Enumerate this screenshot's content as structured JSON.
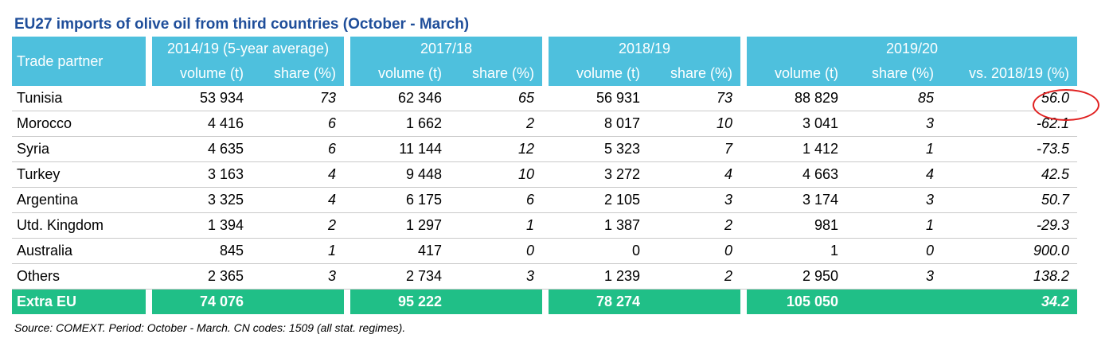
{
  "title": "EU27 imports of olive oil from third countries (October - March)",
  "header": {
    "partner_label": "Trade partner",
    "groups": [
      "2014/19 (5-year average)",
      "2017/18",
      "2018/19",
      "2019/20"
    ],
    "volume_label": "volume (t)",
    "share_label": "share (%)",
    "change_label": "vs. 2018/19 (%)"
  },
  "rows": [
    {
      "partner": "Tunisia",
      "v1": "53 934",
      "s1": "73",
      "v2": "62 346",
      "s2": "65",
      "v3": "56 931",
      "s3": "73",
      "v4": "88 829",
      "s4": "85",
      "chg": "56.0"
    },
    {
      "partner": "Morocco",
      "v1": "4 416",
      "s1": "6",
      "v2": "1 662",
      "s2": "2",
      "v3": "8 017",
      "s3": "10",
      "v4": "3 041",
      "s4": "3",
      "chg": "-62.1"
    },
    {
      "partner": "Syria",
      "v1": "4 635",
      "s1": "6",
      "v2": "11 144",
      "s2": "12",
      "v3": "5 323",
      "s3": "7",
      "v4": "1 412",
      "s4": "1",
      "chg": "-73.5"
    },
    {
      "partner": "Turkey",
      "v1": "3 163",
      "s1": "4",
      "v2": "9 448",
      "s2": "10",
      "v3": "3 272",
      "s3": "4",
      "v4": "4 663",
      "s4": "4",
      "chg": "42.5"
    },
    {
      "partner": "Argentina",
      "v1": "3 325",
      "s1": "4",
      "v2": "6 175",
      "s2": "6",
      "v3": "2 105",
      "s3": "3",
      "v4": "3 174",
      "s4": "3",
      "chg": "50.7"
    },
    {
      "partner": "Utd. Kingdom",
      "v1": "1 394",
      "s1": "2",
      "v2": "1 297",
      "s2": "1",
      "v3": "1 387",
      "s3": "2",
      "v4": "981",
      "s4": "1",
      "chg": "-29.3"
    },
    {
      "partner": "Australia",
      "v1": "845",
      "s1": "1",
      "v2": "417",
      "s2": "0",
      "v3": "0",
      "s3": "0",
      "v4": "1",
      "s4": "0",
      "chg": "900.0"
    },
    {
      "partner": "Others",
      "v1": "2 365",
      "s1": "3",
      "v2": "2 734",
      "s2": "3",
      "v3": "1 239",
      "s3": "2",
      "v4": "2 950",
      "s4": "3",
      "chg": "138.2"
    }
  ],
  "total": {
    "partner": "Extra EU",
    "v1": "74 076",
    "v2": "95 222",
    "v3": "78 274",
    "v4": "105 050",
    "chg": "34.2"
  },
  "source": "Source: COMEXT. Period: October - March. CN codes: 1509 (all stat. regimes).",
  "colors": {
    "header": "#4ec0dd",
    "total": "#20bf87",
    "title": "#1f4e9a",
    "highlight": "#e02020"
  }
}
